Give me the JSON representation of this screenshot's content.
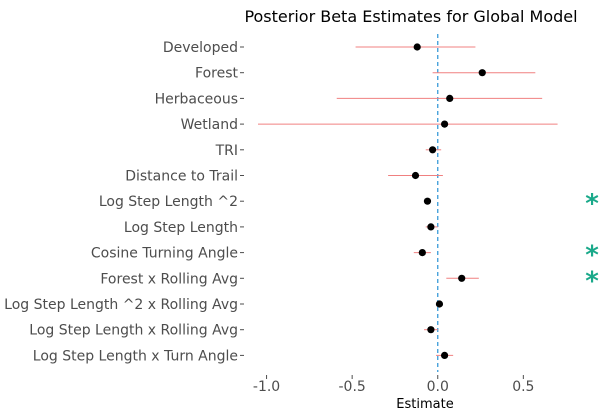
{
  "chart_data": {
    "type": "scatter",
    "subtype": "forest-plot",
    "title": "Posterior Beta Estimates for Global Model",
    "xlabel": "Estimate",
    "ylabel": "",
    "xlim": [
      -1.05,
      0.72
    ],
    "xticks": [
      {
        "value": -1.0,
        "label": "-1.0"
      },
      {
        "value": -0.5,
        "label": "-0.5"
      },
      {
        "value": 0.0,
        "label": "0.0"
      },
      {
        "value": 0.5,
        "label": "0.5"
      }
    ],
    "reference_line": 0,
    "grid": false,
    "colors": {
      "point": "#000000",
      "interval": "#f08080",
      "reference": "#3a9ad9",
      "significance": "#1aa98a"
    },
    "significance_marker": "*",
    "rows": [
      {
        "label": "Developed",
        "estimate": -0.12,
        "lower": -0.48,
        "upper": 0.22,
        "significant": false
      },
      {
        "label": "Forest",
        "estimate": 0.26,
        "lower": -0.03,
        "upper": 0.57,
        "significant": false
      },
      {
        "label": "Herbaceous",
        "estimate": 0.07,
        "lower": -0.59,
        "upper": 0.61,
        "significant": false
      },
      {
        "label": "Wetland",
        "estimate": 0.04,
        "lower": -1.05,
        "upper": 0.7,
        "significant": false
      },
      {
        "label": "TRI",
        "estimate": -0.03,
        "lower": -0.07,
        "upper": 0.02,
        "significant": false
      },
      {
        "label": "Distance to Trail",
        "estimate": -0.13,
        "lower": -0.29,
        "upper": 0.03,
        "significant": false
      },
      {
        "label": "Log Step Length ^2",
        "estimate": -0.06,
        "lower": -0.08,
        "upper": -0.04,
        "significant": true
      },
      {
        "label": "Log Step Length",
        "estimate": -0.04,
        "lower": -0.07,
        "upper": 0.0,
        "significant": false
      },
      {
        "label": "Cosine Turning Angle",
        "estimate": -0.09,
        "lower": -0.14,
        "upper": -0.04,
        "significant": true
      },
      {
        "label": "Forest x Rolling Avg",
        "estimate": 0.14,
        "lower": 0.05,
        "upper": 0.24,
        "significant": true
      },
      {
        "label": "Log Step Length ^2 x Rolling Avg",
        "estimate": 0.01,
        "lower": -0.01,
        "upper": 0.02,
        "significant": false
      },
      {
        "label": "Log Step Length x Rolling Avg",
        "estimate": -0.04,
        "lower": -0.08,
        "upper": 0.0,
        "significant": false
      },
      {
        "label": "Log Step Length x Turn Angle",
        "estimate": 0.04,
        "lower": -0.01,
        "upper": 0.09,
        "significant": false
      }
    ]
  }
}
